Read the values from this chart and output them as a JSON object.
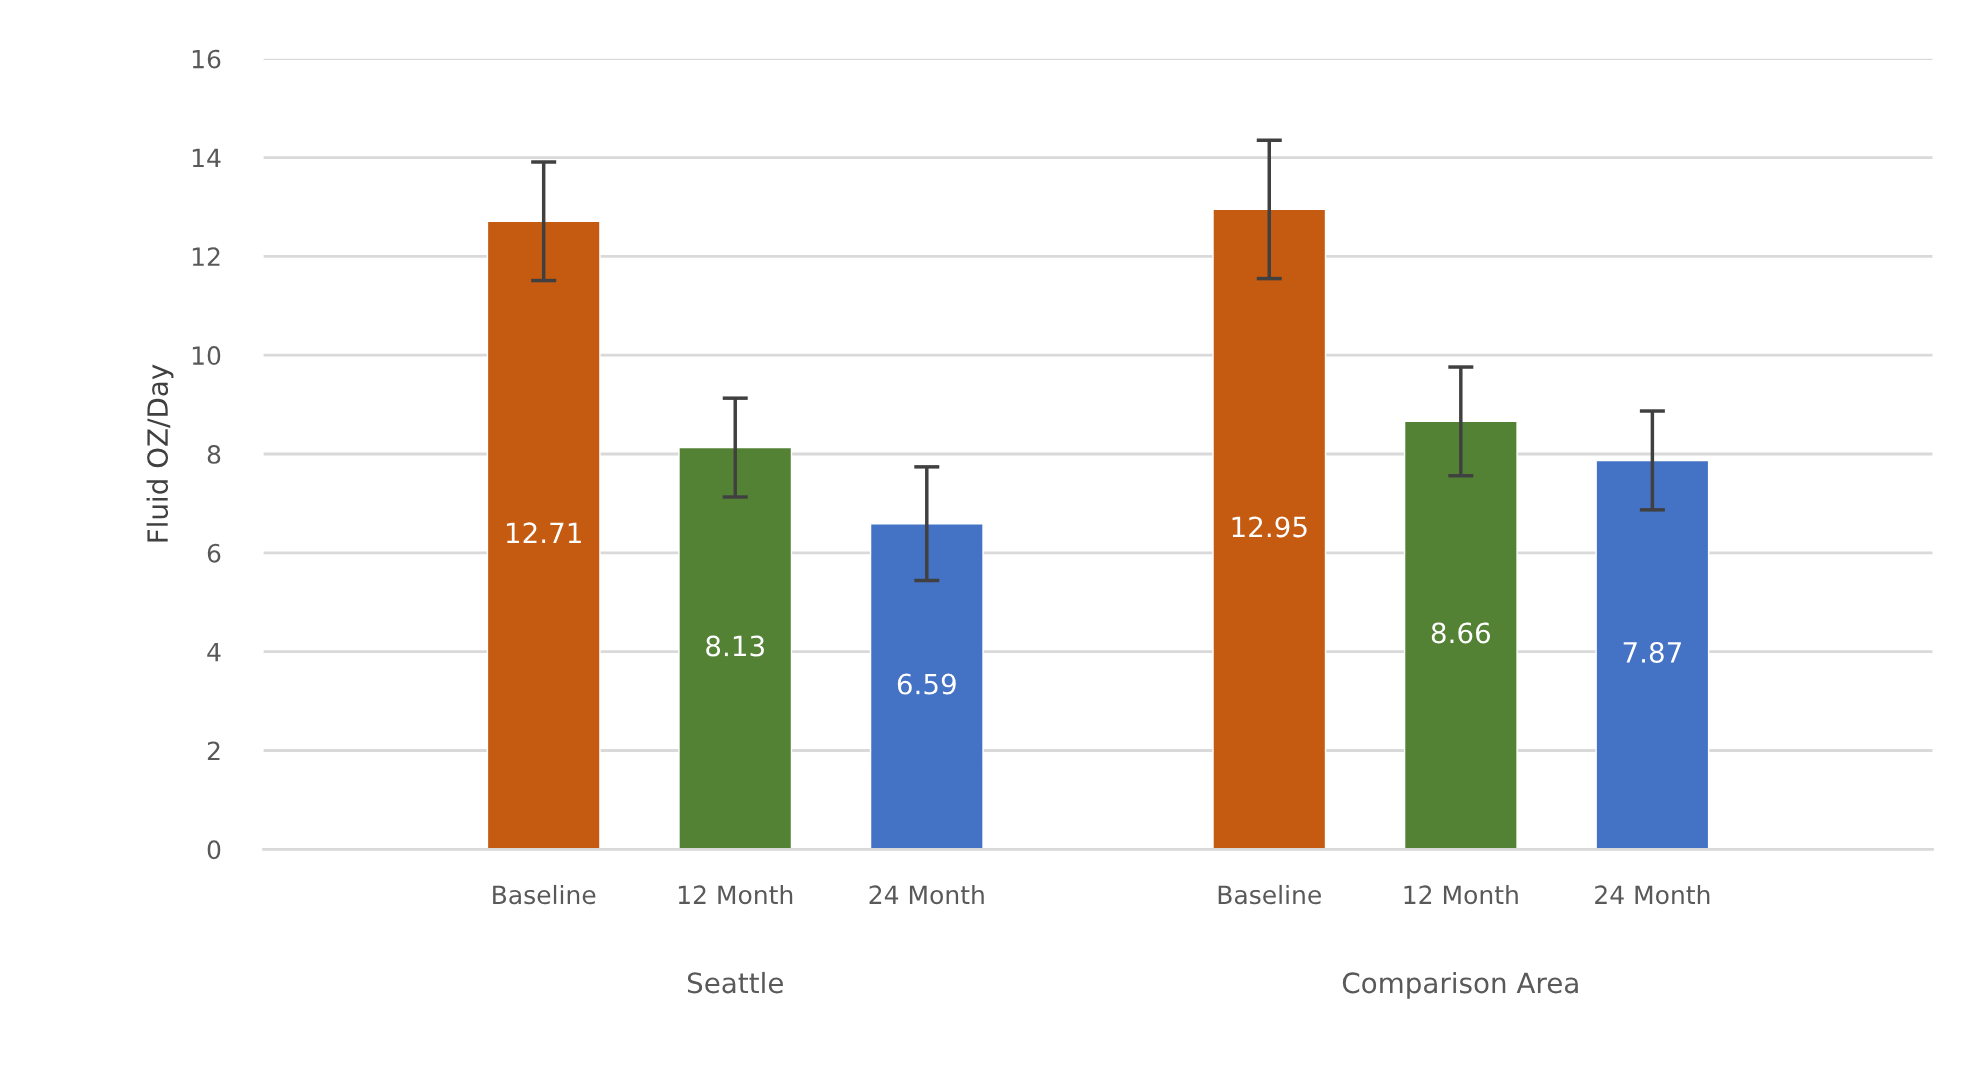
{
  "chart_data": {
    "type": "bar",
    "ylabel": "Fluid OZ/Day",
    "categories": [
      "Seattle",
      "Comparison Area"
    ],
    "series": [
      {
        "name": "Baseline",
        "color": "#c55a11",
        "values": [
          12.71,
          12.95
        ],
        "errors": [
          1.2,
          1.4
        ]
      },
      {
        "name": "12 Month",
        "color": "#548235",
        "values": [
          8.13,
          8.66
        ],
        "errors": [
          1.0,
          1.1
        ]
      },
      {
        "name": "24 Month",
        "color": "#4472c4",
        "values": [
          6.59,
          7.87
        ],
        "errors": [
          1.15,
          1.0
        ]
      }
    ],
    "ylim": [
      0,
      16
    ],
    "yticks": [
      0,
      2,
      4,
      6,
      8,
      10,
      12,
      14,
      16
    ],
    "grid": "y",
    "data_labels": true,
    "legend": false
  }
}
